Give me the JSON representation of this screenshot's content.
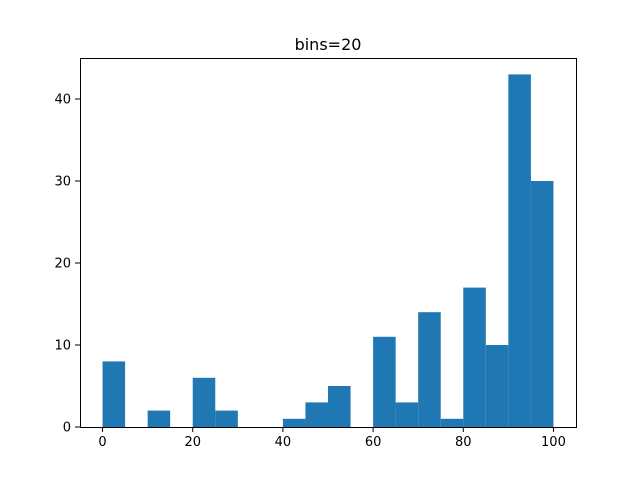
{
  "chart_data": {
    "type": "bar",
    "title": "bins=20",
    "xlabel": "",
    "ylabel": "",
    "bin_edges": [
      0,
      5,
      10,
      15,
      20,
      25,
      30,
      35,
      40,
      45,
      50,
      55,
      60,
      65,
      70,
      75,
      80,
      85,
      90,
      95,
      100
    ],
    "values": [
      8,
      0,
      2,
      0,
      6,
      2,
      0,
      0,
      1,
      3,
      5,
      0,
      11,
      3,
      14,
      1,
      17,
      10,
      43,
      30
    ],
    "xlim": [
      -5,
      105
    ],
    "ylim": [
      0,
      45
    ],
    "xticks": [
      0,
      20,
      40,
      60,
      80,
      100
    ],
    "yticks": [
      0,
      10,
      20,
      30,
      40
    ],
    "grid": false,
    "bar_color": "#1f77b4"
  }
}
